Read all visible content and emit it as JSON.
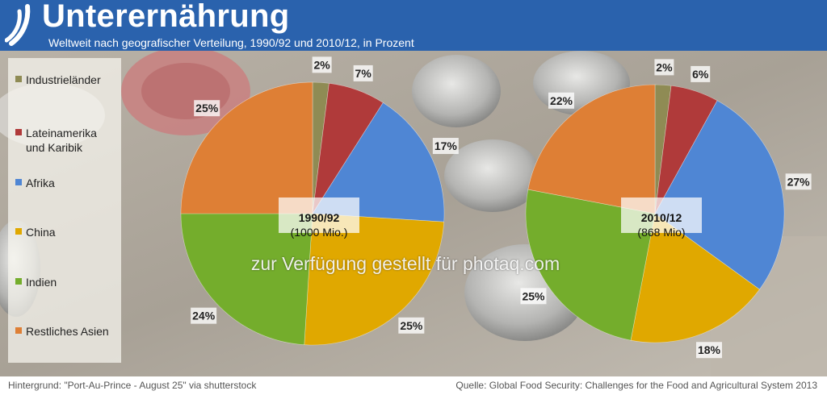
{
  "header": {
    "title": "Unterernährung",
    "subtitle": "Weltweit nach geografischer Verteilung, 1990/92 und 2010/12, in Prozent"
  },
  "watermark": "zur Verfügung gestellt für photaq.com",
  "footer": {
    "left": "Hintergrund: \"Port-Au-Prince - August 25\" via shutterstock",
    "right": "Quelle: Global Food Security: Challenges for the Food and Agricultural System 2013"
  },
  "colors": {
    "header": "#2a62ad",
    "Industrieländer": "#8f8b54",
    "Lateinamerika und Karibik": "#b03a3a",
    "Afrika": "#4f86d4",
    "China": "#e0a800",
    "Indien": "#74ad2c",
    "Restliches Asien": "#de7f35"
  },
  "legend": [
    {
      "label": "Industrieländer",
      "lines": [
        "Industrieländer"
      ]
    },
    {
      "label": "Lateinamerika und Karibik",
      "lines": [
        "Lateinamerika",
        "und Karibik"
      ]
    },
    {
      "label": "Afrika",
      "lines": [
        "Afrika"
      ]
    },
    {
      "label": "China",
      "lines": [
        "China"
      ]
    },
    {
      "label": "Indien",
      "lines": [
        "Indien"
      ]
    },
    {
      "label": "Restliches Asien",
      "lines": [
        "Restliches Asien"
      ]
    }
  ],
  "chart_data": [
    {
      "type": "pie",
      "title": "1990/92",
      "subtitle": "(1000 Mio.)",
      "categories": [
        "Industrieländer",
        "Lateinamerika und Karibik",
        "Afrika",
        "China",
        "Indien",
        "Restliches Asien"
      ],
      "values": [
        2,
        7,
        17,
        25,
        24,
        25
      ],
      "labels": [
        "2%",
        "7%",
        "17%",
        "25%",
        "24%",
        "25%"
      ],
      "start": "12 o'clock, clockwise"
    },
    {
      "type": "pie",
      "title": "2010/12",
      "subtitle": "(868 Mio)",
      "categories": [
        "Industrieländer",
        "Lateinamerika und Karibik",
        "Afrika",
        "China",
        "Indien",
        "Restliches Asien"
      ],
      "values": [
        2,
        6,
        27,
        18,
        25,
        22
      ],
      "labels": [
        "2%",
        "6%",
        "27%",
        "18%",
        "25%",
        "22%"
      ],
      "start": "12 o'clock, clockwise"
    }
  ]
}
